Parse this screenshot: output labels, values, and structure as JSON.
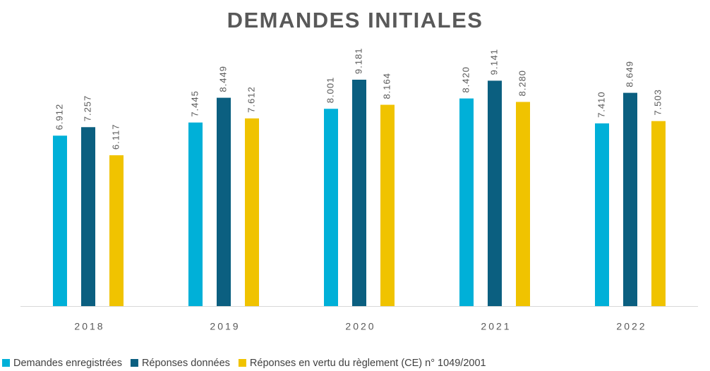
{
  "chart_data": {
    "type": "bar",
    "title": "DEMANDES INITIALES",
    "categories": [
      "2018",
      "2019",
      "2020",
      "2021",
      "2022"
    ],
    "series": [
      {
        "name": "Demandes enregistrées",
        "color": "#00b0d8",
        "values": [
          6912,
          7445,
          8001,
          8420,
          7410
        ],
        "value_labels": [
          "6.912",
          "7.445",
          "8.001",
          "8.420",
          "7.410"
        ]
      },
      {
        "name": "Réponses données",
        "color": "#0b5f80",
        "values": [
          7257,
          8449,
          9181,
          9141,
          8649
        ],
        "value_labels": [
          "7.257",
          "8.449",
          "9.181",
          "9.141",
          "8.649"
        ]
      },
      {
        "name": "Réponses en vertu du règlement (CE) n° 1049/2001",
        "color": "#f0c300",
        "values": [
          6117,
          7612,
          8164,
          8280,
          7503
        ],
        "value_labels": [
          "6.117",
          "7.612",
          "8.164",
          "8.280",
          "7.503"
        ]
      }
    ],
    "legend": "bottom"
  }
}
